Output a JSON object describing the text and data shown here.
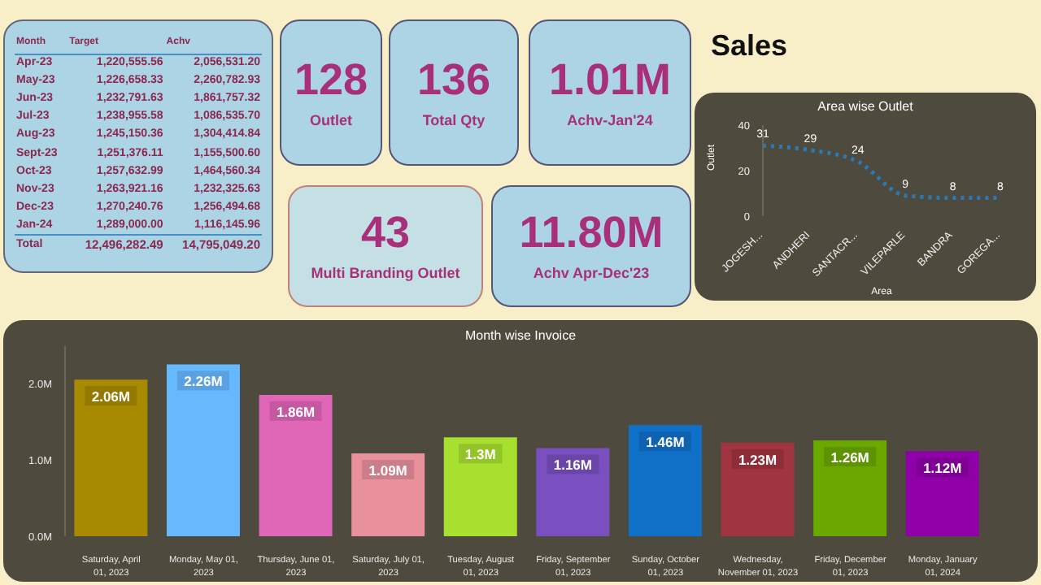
{
  "chart_data": [
    {
      "type": "other",
      "annotations": [
        "Month",
        "Target",
        "Achv",
        "Apr-23",
        "1,220,555.56",
        "2,056,531.20",
        "May-23",
        "1,226,658.33",
        "2,260,782.93",
        "Jun-23",
        "1,232,791.63",
        "1,861,757.32",
        "Jul-23",
        "1,238,955.58",
        "1,086,535.70",
        "Aug-23",
        "1,245,150.36",
        "1,304,414.84",
        "Sept-23",
        "1,251,376.11",
        "1,155,500.60",
        "Oct-23",
        "1,257,632.99",
        "1,464,560.34",
        "Nov-23",
        "1,263,921.16",
        "1,232,325.63",
        "Dec-23",
        "1,270,240.76",
        "1,256,494.68",
        "Jan-24",
        "1,289,000.00",
        "1,116,145.96",
        "Total",
        "12,496,282.49",
        "14,795,049.20"
      ]
    },
    {
      "type": "other",
      "title": "Sales",
      "annotations": [
        "128",
        "Outlet",
        "136",
        "Total Qty",
        "1.01M",
        "Achv-Jan'24",
        "43",
        "Multi Branding Outlet",
        "11.80M",
        "Achv Apr-Dec'23"
      ]
    },
    {
      "type": "line",
      "title": "Area wise Outlet",
      "xlabel": "Area",
      "ylabel": "Outlet",
      "categories": [
        "JOGESH...",
        "ANDHERI",
        "SANTACR...",
        "VILEPARLE",
        "BANDRA",
        "GOREGA..."
      ],
      "series": [
        {
          "color": "#2a7ab8",
          "values": [
            31,
            29,
            24,
            9,
            8,
            8
          ]
        }
      ],
      "ylim": [
        0,
        40
      ],
      "yticks": [
        0,
        20,
        40
      ],
      "data_labels": true,
      "marker": "none",
      "line_style": "dotted",
      "grid": false,
      "legend": false
    },
    {
      "type": "bar",
      "title": "Month wise Invoice",
      "categories": [
        "Saturday, April 01, 2023",
        "Monday, May 01, 2023",
        "Thursday, June 01, 2023",
        "Saturday, July 01, 2023",
        "Tuesday, August 01, 2023",
        "Friday, September 01, 2023",
        "Sunday, October 01, 2023",
        "Wednesday, November 01, 2023",
        "Friday, December 01, 2023",
        "Monday, January 01, 2024"
      ],
      "values": [
        2060000,
        2260000,
        1860000,
        1090000,
        1300000,
        1160000,
        1460000,
        1230000,
        1260000,
        1120000
      ],
      "value_labels": [
        "2.06M",
        "2.26M",
        "1.86M",
        "1.09M",
        "1.3M",
        "1.16M",
        "1.46M",
        "1.23M",
        "1.26M",
        "1.12M"
      ],
      "colors": [
        "#a88a00",
        "#66b8ff",
        "#e066b8",
        "#e8909c",
        "#a8e030",
        "#7a50c0",
        "#1070c8",
        "#a03440",
        "#6aa800",
        "#9000a8"
      ],
      "ylim": [
        0,
        2500000
      ],
      "yticks": [
        {
          "value": 0,
          "label": "0.0M"
        },
        {
          "value": 1000000,
          "label": "1.0M"
        },
        {
          "value": 2000000,
          "label": "2.0M"
        }
      ],
      "grid": false,
      "legend": false
    }
  ]
}
